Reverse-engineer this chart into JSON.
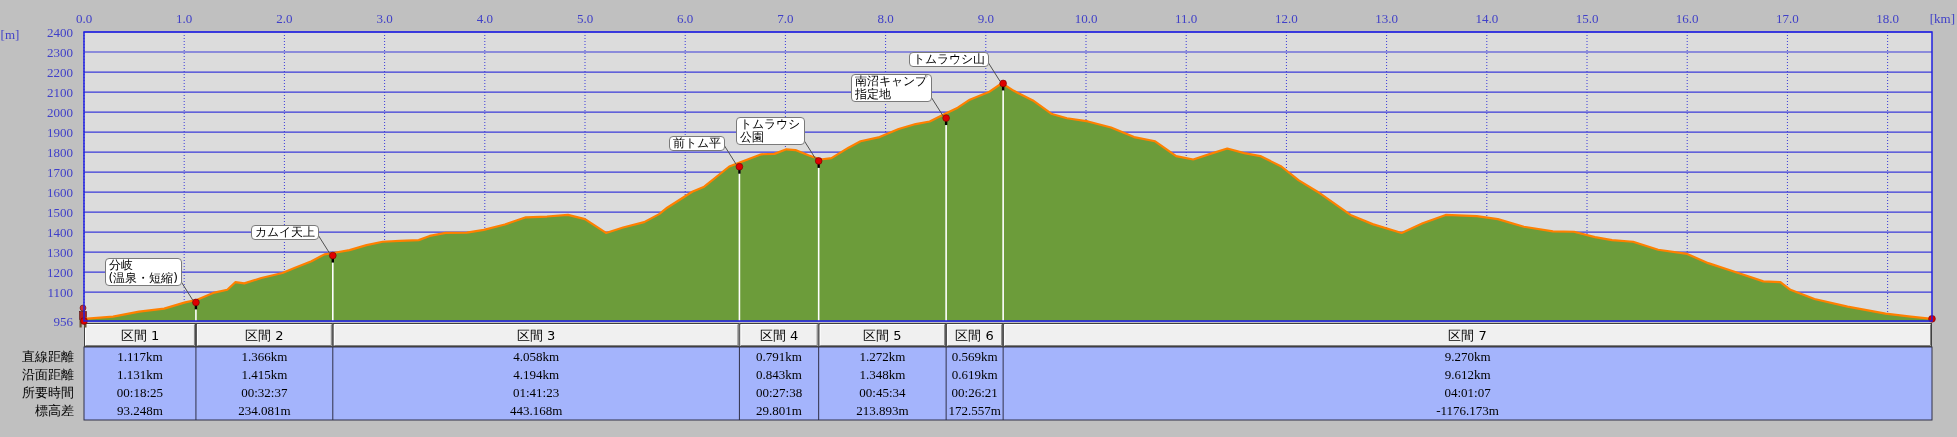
{
  "chart_data": [
    {
      "type": "area",
      "xlabel": "[km]",
      "ylabel": "[m]",
      "xlim": [
        0,
        18.443
      ],
      "ylim": [
        956,
        2400
      ],
      "xticks": [
        {
          "value": 0,
          "label": "0.0"
        },
        {
          "value": 1,
          "label": "1.0"
        },
        {
          "value": 2,
          "label": "2.0"
        },
        {
          "value": 3,
          "label": "3.0"
        },
        {
          "value": 4,
          "label": "4.0"
        },
        {
          "value": 5,
          "label": "5.0"
        },
        {
          "value": 6,
          "label": "6.0"
        },
        {
          "value": 7,
          "label": "7.0"
        },
        {
          "value": 8,
          "label": "8.0"
        },
        {
          "value": 9,
          "label": "9.0"
        },
        {
          "value": 10,
          "label": "10.0"
        },
        {
          "value": 11,
          "label": "11.0"
        },
        {
          "value": 12,
          "label": "12.0"
        },
        {
          "value": 13,
          "label": "13.0"
        },
        {
          "value": 14,
          "label": "14.0"
        },
        {
          "value": 15,
          "label": "15.0"
        },
        {
          "value": 16,
          "label": "16.0"
        },
        {
          "value": 17,
          "label": "17.0"
        },
        {
          "value": 18,
          "label": "18.0"
        }
      ],
      "yticks": [
        956,
        1100,
        1200,
        1300,
        1400,
        1500,
        1600,
        1700,
        1800,
        1900,
        2000,
        2100,
        2200,
        2300,
        2400
      ],
      "grid": true,
      "x": [
        0,
        0.29,
        0.55,
        0.8,
        1.01,
        1.13,
        1.3,
        1.43,
        1.51,
        1.6,
        1.77,
        1.98,
        2.1,
        2.27,
        2.4,
        2.5,
        2.65,
        2.82,
        2.98,
        3.15,
        3.34,
        3.45,
        3.61,
        3.82,
        3.99,
        4.2,
        4.41,
        4.62,
        4.83,
        5.0,
        5.21,
        5.38,
        5.59,
        5.74,
        5.82,
        6.07,
        6.19,
        6.44,
        6.55,
        6.76,
        6.89,
        7.01,
        7.1,
        7.23,
        7.35,
        7.46,
        7.63,
        7.75,
        7.94,
        8.13,
        8.3,
        8.44,
        8.59,
        8.72,
        8.84,
        9.03,
        9.16,
        9.28,
        9.47,
        9.66,
        9.81,
        10.02,
        10.25,
        10.48,
        10.69,
        10.9,
        11.07,
        11.24,
        11.41,
        11.58,
        11.74,
        11.95,
        12.12,
        12.31,
        12.64,
        12.86,
        13.15,
        13.36,
        13.59,
        13.9,
        14.11,
        14.37,
        14.66,
        14.87,
        15.08,
        15.25,
        15.46,
        15.71,
        16.0,
        16.21,
        16.51,
        16.76,
        16.93,
        17.03,
        17.27,
        17.6,
        17.98,
        18.23,
        18.443
      ],
      "series": [
        {
          "type": "area",
          "color": "#6c9c3a",
          "values": [
            967,
            978,
            1003,
            1018,
            1049,
            1062,
            1098,
            1112,
            1150,
            1144,
            1171,
            1196,
            1221,
            1255,
            1289,
            1297,
            1310,
            1335,
            1352,
            1356,
            1360,
            1381,
            1396,
            1398,
            1411,
            1438,
            1474,
            1478,
            1486,
            1465,
            1396,
            1423,
            1450,
            1490,
            1522,
            1602,
            1627,
            1728,
            1749,
            1789,
            1791,
            1814,
            1810,
            1784,
            1763,
            1770,
            1822,
            1854,
            1875,
            1915,
            1940,
            1953,
            1990,
            2022,
            2062,
            2100,
            2144,
            2106,
            2058,
            1990,
            1969,
            1953,
            1923,
            1875,
            1854,
            1780,
            1763,
            1791,
            1818,
            1795,
            1780,
            1728,
            1660,
            1602,
            1486,
            1440,
            1396,
            1444,
            1486,
            1480,
            1465,
            1427,
            1404,
            1402,
            1375,
            1360,
            1352,
            1312,
            1291,
            1245,
            1196,
            1154,
            1150,
            1112,
            1066,
            1028,
            993,
            978,
            967
          ]
        },
        {
          "type": "lollipop",
          "color": "#e00000",
          "x": [
            0,
            1.117,
            2.483,
            6.541,
            7.332,
            8.604,
            9.173,
            18.443
          ],
          "values": [
            956,
            1049,
            1283,
            1727,
            1756,
            1970,
            2143,
            967
          ]
        }
      ],
      "annotations": [
        {
          "text": "分岐\n(温泉・短縮)",
          "x": 1.117,
          "y": 1049
        },
        {
          "text": "カムイ天上",
          "x": 2.483,
          "y": 1283
        },
        {
          "text": "前トム平",
          "x": 6.541,
          "y": 1727
        },
        {
          "text": "トムラウシ公園",
          "x": 7.332,
          "y": 1756
        },
        {
          "text": "南沼キャンプ指定地",
          "x": 8.604,
          "y": 1970
        },
        {
          "text": "トムラウシ山",
          "x": 9.173,
          "y": 2143
        }
      ]
    },
    {
      "type": "other",
      "categories": [
        "区間 1",
        "区間 2",
        "区間 3",
        "区間 4",
        "区間 5",
        "区間 6",
        "区間 7"
      ],
      "y_categories": [
        "直線距離",
        "沿面距離",
        "所要時間",
        "標高差"
      ],
      "cell_labels": [
        [
          "1.117km",
          "1.366km",
          "4.058km",
          "0.791km",
          "1.272km",
          "0.569km",
          "9.270km"
        ],
        [
          "1.131km",
          "1.415km",
          "4.194km",
          "0.843km",
          "1.348km",
          "0.619km",
          "9.612km"
        ],
        [
          "00:18:25",
          "00:32:37",
          "01:41:23",
          "00:27:38",
          "00:45:34",
          "00:26:21",
          "04:01:07"
        ],
        [
          "93.248m",
          "234.081m",
          "443.168m",
          "29.801m",
          "213.893m",
          "172.557m",
          "-1176.173m"
        ]
      ]
    }
  ]
}
